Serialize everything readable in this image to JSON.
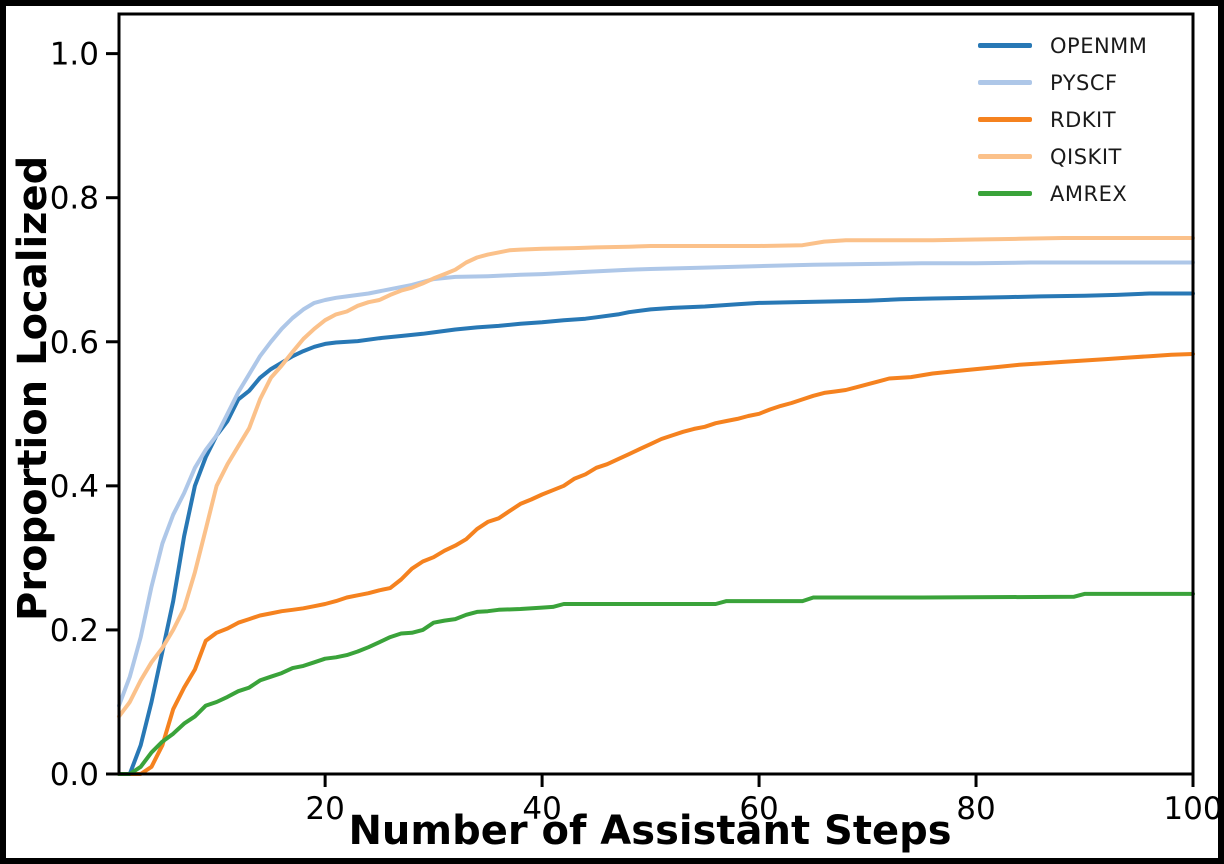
{
  "chart_data": {
    "type": "line",
    "title": "",
    "xlabel": "Number of Assistant Steps",
    "ylabel": "Proportion Localized",
    "xlim": [
      1,
      100
    ],
    "ylim": [
      0,
      1.055
    ],
    "grid": false,
    "legend_position": "upper right",
    "xticks": [
      20,
      40,
      60,
      80,
      100
    ],
    "xtick_labels": [
      "20",
      "40",
      "60",
      "80",
      "100"
    ],
    "yticks": [
      0.0,
      0.2,
      0.4,
      0.6,
      0.8,
      1.0
    ],
    "ytick_labels": [
      "0.0",
      "0.2",
      "0.4",
      "0.6",
      "0.8",
      "1.0"
    ],
    "axis_color": "#000000",
    "series": [
      {
        "name": "OPENMM",
        "color": "#2878b5",
        "points": [
          [
            1,
            0
          ],
          [
            2,
            0
          ],
          [
            3,
            0.04
          ],
          [
            4,
            0.1
          ],
          [
            5,
            0.17
          ],
          [
            6,
            0.24
          ],
          [
            7,
            0.33
          ],
          [
            8,
            0.4
          ],
          [
            9,
            0.44
          ],
          [
            10,
            0.47
          ],
          [
            11,
            0.49
          ],
          [
            12,
            0.52
          ],
          [
            13,
            0.532
          ],
          [
            14,
            0.55
          ],
          [
            15,
            0.562
          ],
          [
            16,
            0.571
          ],
          [
            17,
            0.58
          ],
          [
            18,
            0.587
          ],
          [
            19,
            0.593
          ],
          [
            20,
            0.597
          ],
          [
            21,
            0.599
          ],
          [
            23,
            0.601
          ],
          [
            25,
            0.605
          ],
          [
            27,
            0.608
          ],
          [
            29,
            0.611
          ],
          [
            30,
            0.613
          ],
          [
            32,
            0.617
          ],
          [
            34,
            0.62
          ],
          [
            36,
            0.622
          ],
          [
            38,
            0.625
          ],
          [
            40,
            0.627
          ],
          [
            42,
            0.63
          ],
          [
            44,
            0.632
          ],
          [
            45,
            0.634
          ],
          [
            47,
            0.638
          ],
          [
            48,
            0.641
          ],
          [
            50,
            0.645
          ],
          [
            52,
            0.647
          ],
          [
            55,
            0.649
          ],
          [
            58,
            0.652
          ],
          [
            60,
            0.654
          ],
          [
            63,
            0.655
          ],
          [
            67,
            0.656
          ],
          [
            70,
            0.657
          ],
          [
            73,
            0.659
          ],
          [
            76,
            0.66
          ],
          [
            80,
            0.661
          ],
          [
            83,
            0.662
          ],
          [
            86,
            0.663
          ],
          [
            90,
            0.664
          ],
          [
            93,
            0.665
          ],
          [
            96,
            0.667
          ],
          [
            100,
            0.667
          ]
        ]
      },
      {
        "name": "PYSCF",
        "color": "#aec7e8",
        "points": [
          [
            1,
            0.095
          ],
          [
            2,
            0.135
          ],
          [
            3,
            0.19
          ],
          [
            4,
            0.26
          ],
          [
            5,
            0.32
          ],
          [
            6,
            0.36
          ],
          [
            7,
            0.39
          ],
          [
            8,
            0.425
          ],
          [
            9,
            0.45
          ],
          [
            10,
            0.47
          ],
          [
            11,
            0.5
          ],
          [
            12,
            0.53
          ],
          [
            13,
            0.555
          ],
          [
            14,
            0.58
          ],
          [
            15,
            0.6
          ],
          [
            16,
            0.618
          ],
          [
            17,
            0.633
          ],
          [
            18,
            0.645
          ],
          [
            19,
            0.654
          ],
          [
            20,
            0.658
          ],
          [
            21,
            0.661
          ],
          [
            22,
            0.663
          ],
          [
            24,
            0.667
          ],
          [
            26,
            0.673
          ],
          [
            28,
            0.679
          ],
          [
            30,
            0.687
          ],
          [
            32,
            0.69
          ],
          [
            35,
            0.691
          ],
          [
            38,
            0.693
          ],
          [
            40,
            0.694
          ],
          [
            44,
            0.697
          ],
          [
            48,
            0.7
          ],
          [
            50,
            0.701
          ],
          [
            55,
            0.703
          ],
          [
            60,
            0.705
          ],
          [
            65,
            0.707
          ],
          [
            70,
            0.708
          ],
          [
            75,
            0.709
          ],
          [
            80,
            0.709
          ],
          [
            85,
            0.71
          ],
          [
            90,
            0.71
          ],
          [
            95,
            0.71
          ],
          [
            100,
            0.71
          ]
        ]
      },
      {
        "name": "RDKIT",
        "color": "#f5821f",
        "points": [
          [
            1,
            0
          ],
          [
            3,
            0
          ],
          [
            4,
            0.01
          ],
          [
            5,
            0.04
          ],
          [
            6,
            0.09
          ],
          [
            7,
            0.12
          ],
          [
            8,
            0.145
          ],
          [
            9,
            0.185
          ],
          [
            10,
            0.196
          ],
          [
            11,
            0.202
          ],
          [
            12,
            0.21
          ],
          [
            13,
            0.215
          ],
          [
            14,
            0.22
          ],
          [
            15,
            0.223
          ],
          [
            16,
            0.226
          ],
          [
            17,
            0.228
          ],
          [
            18,
            0.23
          ],
          [
            19,
            0.233
          ],
          [
            20,
            0.236
          ],
          [
            21,
            0.24
          ],
          [
            22,
            0.245
          ],
          [
            23,
            0.248
          ],
          [
            24,
            0.251
          ],
          [
            25,
            0.255
          ],
          [
            26,
            0.258
          ],
          [
            27,
            0.27
          ],
          [
            28,
            0.285
          ],
          [
            29,
            0.295
          ],
          [
            30,
            0.301
          ],
          [
            31,
            0.31
          ],
          [
            32,
            0.317
          ],
          [
            33,
            0.326
          ],
          [
            34,
            0.34
          ],
          [
            35,
            0.35
          ],
          [
            36,
            0.355
          ],
          [
            37,
            0.365
          ],
          [
            38,
            0.375
          ],
          [
            39,
            0.381
          ],
          [
            40,
            0.388
          ],
          [
            41,
            0.394
          ],
          [
            42,
            0.4
          ],
          [
            43,
            0.41
          ],
          [
            44,
            0.416
          ],
          [
            45,
            0.425
          ],
          [
            46,
            0.43
          ],
          [
            47,
            0.437
          ],
          [
            48,
            0.444
          ],
          [
            49,
            0.451
          ],
          [
            50,
            0.458
          ],
          [
            51,
            0.465
          ],
          [
            52,
            0.47
          ],
          [
            53,
            0.475
          ],
          [
            54,
            0.479
          ],
          [
            55,
            0.482
          ],
          [
            56,
            0.487
          ],
          [
            57,
            0.49
          ],
          [
            58,
            0.493
          ],
          [
            59,
            0.497
          ],
          [
            60,
            0.5
          ],
          [
            61,
            0.506
          ],
          [
            62,
            0.511
          ],
          [
            63,
            0.515
          ],
          [
            64,
            0.52
          ],
          [
            65,
            0.525
          ],
          [
            66,
            0.529
          ],
          [
            67,
            0.531
          ],
          [
            68,
            0.533
          ],
          [
            69,
            0.537
          ],
          [
            70,
            0.541
          ],
          [
            71,
            0.545
          ],
          [
            72,
            0.549
          ],
          [
            74,
            0.551
          ],
          [
            76,
            0.556
          ],
          [
            78,
            0.559
          ],
          [
            80,
            0.562
          ],
          [
            82,
            0.565
          ],
          [
            84,
            0.568
          ],
          [
            86,
            0.57
          ],
          [
            88,
            0.572
          ],
          [
            90,
            0.574
          ],
          [
            92,
            0.576
          ],
          [
            94,
            0.578
          ],
          [
            96,
            0.58
          ],
          [
            98,
            0.582
          ],
          [
            100,
            0.583
          ]
        ]
      },
      {
        "name": "QISKIT",
        "color": "#fbc18a",
        "points": [
          [
            1,
            0.08
          ],
          [
            2,
            0.1
          ],
          [
            3,
            0.13
          ],
          [
            4,
            0.155
          ],
          [
            5,
            0.175
          ],
          [
            6,
            0.2
          ],
          [
            7,
            0.23
          ],
          [
            8,
            0.28
          ],
          [
            9,
            0.34
          ],
          [
            10,
            0.4
          ],
          [
            11,
            0.43
          ],
          [
            12,
            0.455
          ],
          [
            13,
            0.48
          ],
          [
            14,
            0.52
          ],
          [
            15,
            0.55
          ],
          [
            16,
            0.567
          ],
          [
            17,
            0.586
          ],
          [
            18,
            0.604
          ],
          [
            19,
            0.618
          ],
          [
            20,
            0.63
          ],
          [
            21,
            0.638
          ],
          [
            22,
            0.642
          ],
          [
            23,
            0.65
          ],
          [
            24,
            0.655
          ],
          [
            25,
            0.658
          ],
          [
            26,
            0.665
          ],
          [
            27,
            0.671
          ],
          [
            28,
            0.675
          ],
          [
            29,
            0.681
          ],
          [
            30,
            0.688
          ],
          [
            31,
            0.694
          ],
          [
            32,
            0.7
          ],
          [
            33,
            0.71
          ],
          [
            34,
            0.717
          ],
          [
            35,
            0.721
          ],
          [
            36,
            0.724
          ],
          [
            37,
            0.727
          ],
          [
            38,
            0.728
          ],
          [
            40,
            0.729
          ],
          [
            43,
            0.73
          ],
          [
            45,
            0.731
          ],
          [
            48,
            0.732
          ],
          [
            50,
            0.733
          ],
          [
            55,
            0.733
          ],
          [
            60,
            0.733
          ],
          [
            64,
            0.734
          ],
          [
            66,
            0.739
          ],
          [
            68,
            0.741
          ],
          [
            72,
            0.741
          ],
          [
            76,
            0.741
          ],
          [
            80,
            0.742
          ],
          [
            84,
            0.743
          ],
          [
            88,
            0.744
          ],
          [
            100,
            0.744
          ]
        ]
      },
      {
        "name": "AMREX",
        "color": "#3aa33a",
        "points": [
          [
            1,
            0
          ],
          [
            2,
            0
          ],
          [
            3,
            0.01
          ],
          [
            4,
            0.03
          ],
          [
            5,
            0.045
          ],
          [
            6,
            0.056
          ],
          [
            7,
            0.07
          ],
          [
            8,
            0.08
          ],
          [
            9,
            0.095
          ],
          [
            10,
            0.1
          ],
          [
            11,
            0.107
          ],
          [
            12,
            0.115
          ],
          [
            13,
            0.12
          ],
          [
            14,
            0.13
          ],
          [
            15,
            0.135
          ],
          [
            16,
            0.14
          ],
          [
            17,
            0.147
          ],
          [
            18,
            0.15
          ],
          [
            19,
            0.155
          ],
          [
            20,
            0.16
          ],
          [
            21,
            0.162
          ],
          [
            22,
            0.165
          ],
          [
            23,
            0.17
          ],
          [
            24,
            0.176
          ],
          [
            25,
            0.183
          ],
          [
            26,
            0.19
          ],
          [
            27,
            0.195
          ],
          [
            28,
            0.196
          ],
          [
            29,
            0.2
          ],
          [
            30,
            0.21
          ],
          [
            31,
            0.213
          ],
          [
            32,
            0.215
          ],
          [
            33,
            0.221
          ],
          [
            34,
            0.225
          ],
          [
            35,
            0.226
          ],
          [
            36,
            0.228
          ],
          [
            38,
            0.229
          ],
          [
            40,
            0.231
          ],
          [
            41,
            0.232
          ],
          [
            42,
            0.236
          ],
          [
            46,
            0.236
          ],
          [
            50,
            0.236
          ],
          [
            56,
            0.236
          ],
          [
            57,
            0.24
          ],
          [
            64,
            0.24
          ],
          [
            65,
            0.245
          ],
          [
            75,
            0.245
          ],
          [
            89,
            0.246
          ],
          [
            90,
            0.25
          ],
          [
            100,
            0.25
          ]
        ]
      }
    ]
  }
}
